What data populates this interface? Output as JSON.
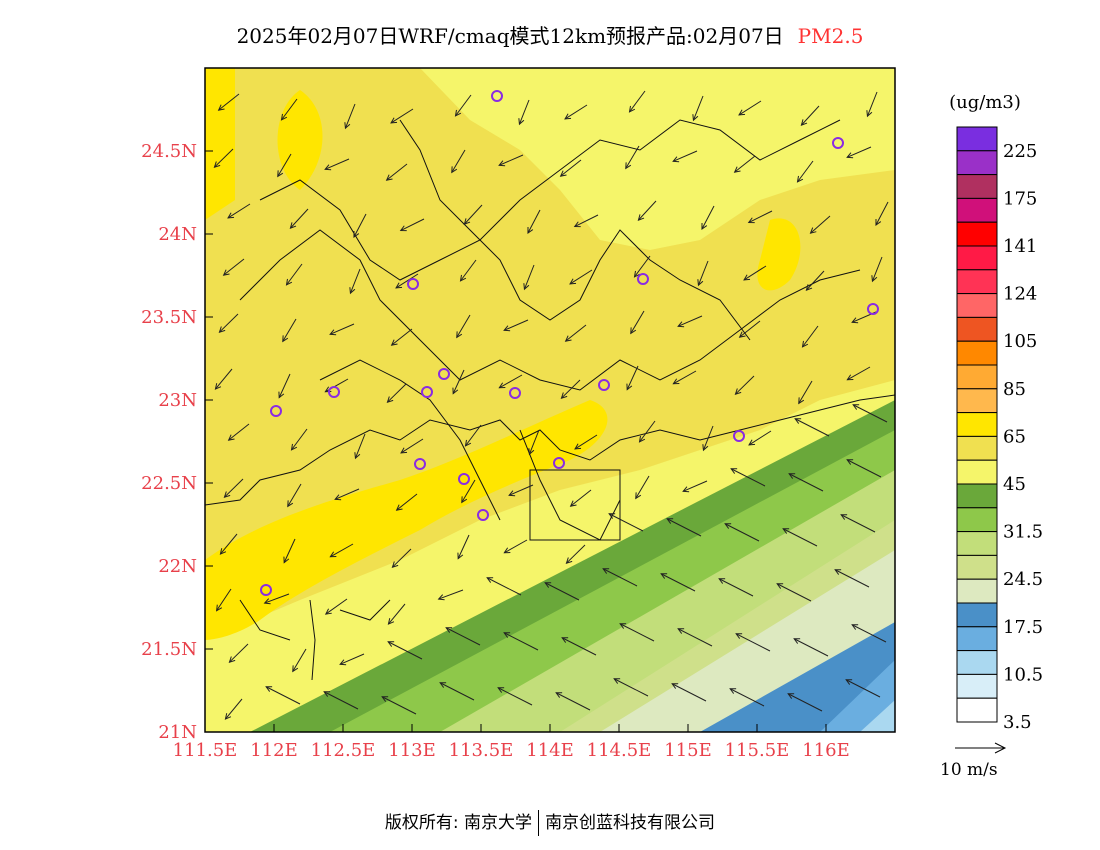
{
  "title": {
    "main": "2025年02月07日WRF/cmaq模式12km预报产品:02月07日",
    "variable": "PM2.5"
  },
  "axes": {
    "x_ticks": [
      "111.5E",
      "112E",
      "112.5E",
      "113E",
      "113.5E",
      "114E",
      "114.5E",
      "115E",
      "115.5E",
      "116E"
    ],
    "y_ticks": [
      "21N",
      "21.5N",
      "22N",
      "22.5N",
      "23N",
      "23.5N",
      "24N",
      "24.5N"
    ],
    "lon_range": [
      111.5,
      116.5
    ],
    "lat_range": [
      21.0,
      25.0
    ]
  },
  "legend": {
    "unit": "(ug/m3)",
    "labels": [
      "225",
      "175",
      "141",
      "124",
      "105",
      "85",
      "65",
      "45",
      "31.5",
      "24.5",
      "17.5",
      "10.5",
      "3.5"
    ],
    "colors_top_to_bottom": [
      "#7a2ee0",
      "#9a30c8",
      "#b03060",
      "#d0107a",
      "#ff0000",
      "#ff1a46",
      "#ff3355",
      "#ff6666",
      "#ee5522",
      "#ff8800",
      "#ffaa33",
      "#ffb84d",
      "#ffe600",
      "#f0e050",
      "#f5f56a",
      "#6aa83a",
      "#8ec84a",
      "#c2de7a",
      "#cfe08a",
      "#dde9c0",
      "#4a90c8",
      "#6aaee0",
      "#aad8f0",
      "#d8eef8",
      "#ffffff"
    ]
  },
  "wind": {
    "reference_label": "10 m/s"
  },
  "footer": {
    "copyright": "版权所有: 南京大学",
    "company": "南京创蓝科技有限公司"
  },
  "colors": {
    "tick_label": "#e8404a",
    "variable_title": "#ff3333",
    "station_marker": "#8a2be2"
  }
}
